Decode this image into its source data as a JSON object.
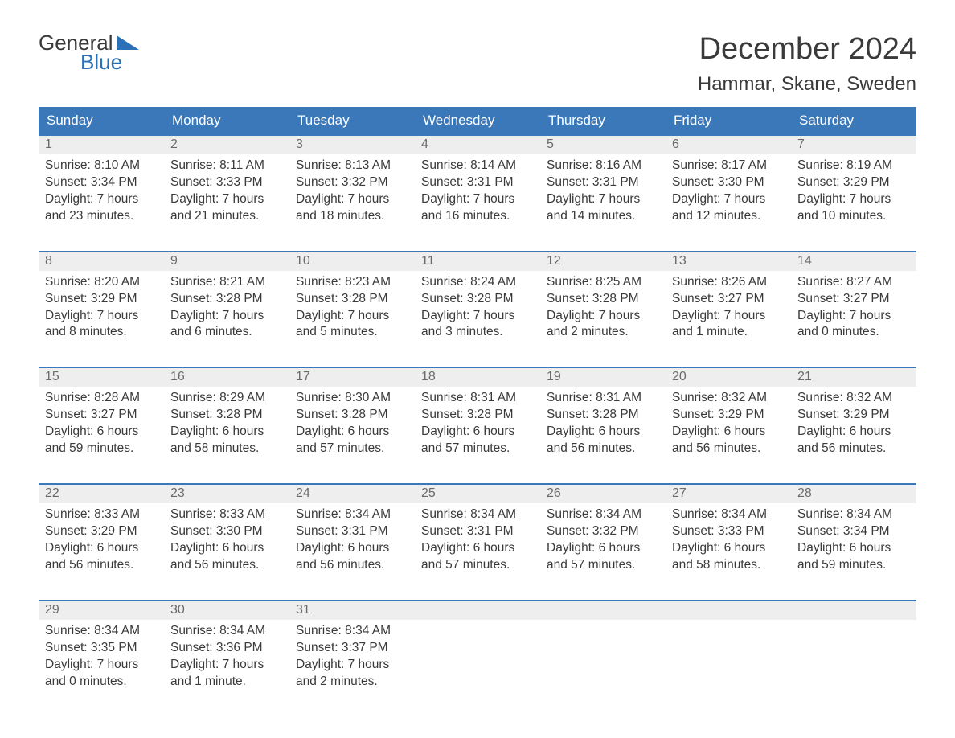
{
  "logo": {
    "word1": "General",
    "word2": "Blue"
  },
  "title": "December 2024",
  "location": "Hammar, Skane, Sweden",
  "colors": {
    "header_bg": "#3a78b9",
    "header_text": "#ffffff",
    "border": "#3a78b9",
    "daynum_bg": "#eeeeee",
    "daynum_text": "#6a6a6a",
    "body_text": "#3a3a3a",
    "logo_blue": "#2a71b8",
    "background": "#ffffff"
  },
  "weekdays": [
    "Sunday",
    "Monday",
    "Tuesday",
    "Wednesday",
    "Thursday",
    "Friday",
    "Saturday"
  ],
  "weeks": [
    [
      {
        "num": "1",
        "sunrise": "8:10 AM",
        "sunset": "3:34 PM",
        "daylight1": "Daylight: 7 hours",
        "daylight2": "and 23 minutes."
      },
      {
        "num": "2",
        "sunrise": "8:11 AM",
        "sunset": "3:33 PM",
        "daylight1": "Daylight: 7 hours",
        "daylight2": "and 21 minutes."
      },
      {
        "num": "3",
        "sunrise": "8:13 AM",
        "sunset": "3:32 PM",
        "daylight1": "Daylight: 7 hours",
        "daylight2": "and 18 minutes."
      },
      {
        "num": "4",
        "sunrise": "8:14 AM",
        "sunset": "3:31 PM",
        "daylight1": "Daylight: 7 hours",
        "daylight2": "and 16 minutes."
      },
      {
        "num": "5",
        "sunrise": "8:16 AM",
        "sunset": "3:31 PM",
        "daylight1": "Daylight: 7 hours",
        "daylight2": "and 14 minutes."
      },
      {
        "num": "6",
        "sunrise": "8:17 AM",
        "sunset": "3:30 PM",
        "daylight1": "Daylight: 7 hours",
        "daylight2": "and 12 minutes."
      },
      {
        "num": "7",
        "sunrise": "8:19 AM",
        "sunset": "3:29 PM",
        "daylight1": "Daylight: 7 hours",
        "daylight2": "and 10 minutes."
      }
    ],
    [
      {
        "num": "8",
        "sunrise": "8:20 AM",
        "sunset": "3:29 PM",
        "daylight1": "Daylight: 7 hours",
        "daylight2": "and 8 minutes."
      },
      {
        "num": "9",
        "sunrise": "8:21 AM",
        "sunset": "3:28 PM",
        "daylight1": "Daylight: 7 hours",
        "daylight2": "and 6 minutes."
      },
      {
        "num": "10",
        "sunrise": "8:23 AM",
        "sunset": "3:28 PM",
        "daylight1": "Daylight: 7 hours",
        "daylight2": "and 5 minutes."
      },
      {
        "num": "11",
        "sunrise": "8:24 AM",
        "sunset": "3:28 PM",
        "daylight1": "Daylight: 7 hours",
        "daylight2": "and 3 minutes."
      },
      {
        "num": "12",
        "sunrise": "8:25 AM",
        "sunset": "3:28 PM",
        "daylight1": "Daylight: 7 hours",
        "daylight2": "and 2 minutes."
      },
      {
        "num": "13",
        "sunrise": "8:26 AM",
        "sunset": "3:27 PM",
        "daylight1": "Daylight: 7 hours",
        "daylight2": "and 1 minute."
      },
      {
        "num": "14",
        "sunrise": "8:27 AM",
        "sunset": "3:27 PM",
        "daylight1": "Daylight: 7 hours",
        "daylight2": "and 0 minutes."
      }
    ],
    [
      {
        "num": "15",
        "sunrise": "8:28 AM",
        "sunset": "3:27 PM",
        "daylight1": "Daylight: 6 hours",
        "daylight2": "and 59 minutes."
      },
      {
        "num": "16",
        "sunrise": "8:29 AM",
        "sunset": "3:28 PM",
        "daylight1": "Daylight: 6 hours",
        "daylight2": "and 58 minutes."
      },
      {
        "num": "17",
        "sunrise": "8:30 AM",
        "sunset": "3:28 PM",
        "daylight1": "Daylight: 6 hours",
        "daylight2": "and 57 minutes."
      },
      {
        "num": "18",
        "sunrise": "8:31 AM",
        "sunset": "3:28 PM",
        "daylight1": "Daylight: 6 hours",
        "daylight2": "and 57 minutes."
      },
      {
        "num": "19",
        "sunrise": "8:31 AM",
        "sunset": "3:28 PM",
        "daylight1": "Daylight: 6 hours",
        "daylight2": "and 56 minutes."
      },
      {
        "num": "20",
        "sunrise": "8:32 AM",
        "sunset": "3:29 PM",
        "daylight1": "Daylight: 6 hours",
        "daylight2": "and 56 minutes."
      },
      {
        "num": "21",
        "sunrise": "8:32 AM",
        "sunset": "3:29 PM",
        "daylight1": "Daylight: 6 hours",
        "daylight2": "and 56 minutes."
      }
    ],
    [
      {
        "num": "22",
        "sunrise": "8:33 AM",
        "sunset": "3:29 PM",
        "daylight1": "Daylight: 6 hours",
        "daylight2": "and 56 minutes."
      },
      {
        "num": "23",
        "sunrise": "8:33 AM",
        "sunset": "3:30 PM",
        "daylight1": "Daylight: 6 hours",
        "daylight2": "and 56 minutes."
      },
      {
        "num": "24",
        "sunrise": "8:34 AM",
        "sunset": "3:31 PM",
        "daylight1": "Daylight: 6 hours",
        "daylight2": "and 56 minutes."
      },
      {
        "num": "25",
        "sunrise": "8:34 AM",
        "sunset": "3:31 PM",
        "daylight1": "Daylight: 6 hours",
        "daylight2": "and 57 minutes."
      },
      {
        "num": "26",
        "sunrise": "8:34 AM",
        "sunset": "3:32 PM",
        "daylight1": "Daylight: 6 hours",
        "daylight2": "and 57 minutes."
      },
      {
        "num": "27",
        "sunrise": "8:34 AM",
        "sunset": "3:33 PM",
        "daylight1": "Daylight: 6 hours",
        "daylight2": "and 58 minutes."
      },
      {
        "num": "28",
        "sunrise": "8:34 AM",
        "sunset": "3:34 PM",
        "daylight1": "Daylight: 6 hours",
        "daylight2": "and 59 minutes."
      }
    ],
    [
      {
        "num": "29",
        "sunrise": "8:34 AM",
        "sunset": "3:35 PM",
        "daylight1": "Daylight: 7 hours",
        "daylight2": "and 0 minutes."
      },
      {
        "num": "30",
        "sunrise": "8:34 AM",
        "sunset": "3:36 PM",
        "daylight1": "Daylight: 7 hours",
        "daylight2": "and 1 minute."
      },
      {
        "num": "31",
        "sunrise": "8:34 AM",
        "sunset": "3:37 PM",
        "daylight1": "Daylight: 7 hours",
        "daylight2": "and 2 minutes."
      },
      null,
      null,
      null,
      null
    ]
  ],
  "labels": {
    "sunrise_prefix": "Sunrise: ",
    "sunset_prefix": "Sunset: "
  }
}
